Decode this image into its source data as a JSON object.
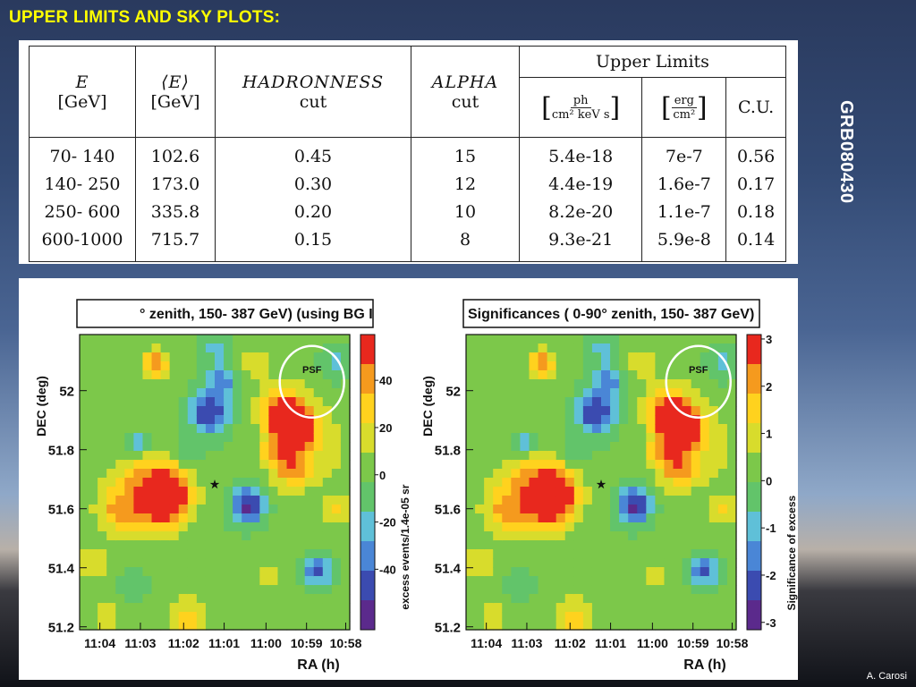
{
  "slide": {
    "title": "UPPER LIMITS AND SKY PLOTS:",
    "side_label": "GRB080430",
    "credit": "A. Carosi"
  },
  "table": {
    "headers": {
      "e": "E",
      "e_unit": "[GeV]",
      "mean_e": "⟨E⟩",
      "mean_e_unit": "[GeV]",
      "hadronness": "HADRONNESS",
      "hadronness_sub": "cut",
      "alpha": "ALPHA",
      "alpha_sub": "cut",
      "upper_limits": "Upper Limits",
      "flux_num": "ph",
      "flux_den": "cm² keV s",
      "energy_num": "erg",
      "energy_den": "cm²",
      "cu": "C.U."
    },
    "rows": [
      {
        "e": "70- 140",
        "mean_e": "102.6",
        "had": "0.45",
        "alpha": "15",
        "flux": "5.4e-18",
        "energy": "7e-7",
        "cu": "0.56"
      },
      {
        "e": "140- 250",
        "mean_e": "173.0",
        "had": "0.30",
        "alpha": "12",
        "flux": "4.4e-19",
        "energy": "1.6e-7",
        "cu": "0.17"
      },
      {
        "e": "250- 600",
        "mean_e": "335.8",
        "had": "0.20",
        "alpha": "10",
        "flux": "8.2e-20",
        "energy": "1.1e-7",
        "cu": "0.18"
      },
      {
        "e": "600-1000",
        "mean_e": "715.7",
        "had": "0.15",
        "alpha": "8",
        "flux": "9.3e-21",
        "energy": "5.9e-8",
        "cu": "0.14"
      }
    ]
  },
  "plots": {
    "left": {
      "title": "° zenith, 150- 387 GeV) (using BG I",
      "ylabel": "DEC (deg)",
      "xlabel": "RA (h)",
      "zlabel": "excess events/1.4e-05 sr",
      "yticks": [
        "52",
        "51.8",
        "51.6",
        "51.4",
        "51.2"
      ],
      "xticks": [
        "11:04",
        "11:03",
        "11:02",
        "11:01",
        "11:00",
        "10:59",
        "10:58"
      ],
      "cticks": [
        "40",
        "20",
        "0",
        "-20",
        "-40"
      ],
      "psf": "PSF"
    },
    "right": {
      "title": "Significances ( 0-90° zenith, 150- 387 GeV)",
      "ylabel": "DEC (deg)",
      "xlabel": "RA (h)",
      "zlabel": "Significance of excess",
      "yticks": [
        "52",
        "51.8",
        "51.6",
        "51.4",
        "51.2"
      ],
      "xticks": [
        "11:04",
        "11:03",
        "11:02",
        "11:01",
        "11:00",
        "10:59",
        "10:58"
      ],
      "cticks": [
        "3",
        "2",
        "1",
        "0",
        "-1",
        "-2",
        "-3"
      ],
      "psf": "PSF"
    },
    "colors": {
      "scale": [
        "#5b2a8c",
        "#3b4bb0",
        "#4a86d6",
        "#5fc0d8",
        "#62c46a",
        "#7cc84a",
        "#d8dc2c",
        "#ffd21e",
        "#f59a1e",
        "#e8281e"
      ]
    }
  }
}
